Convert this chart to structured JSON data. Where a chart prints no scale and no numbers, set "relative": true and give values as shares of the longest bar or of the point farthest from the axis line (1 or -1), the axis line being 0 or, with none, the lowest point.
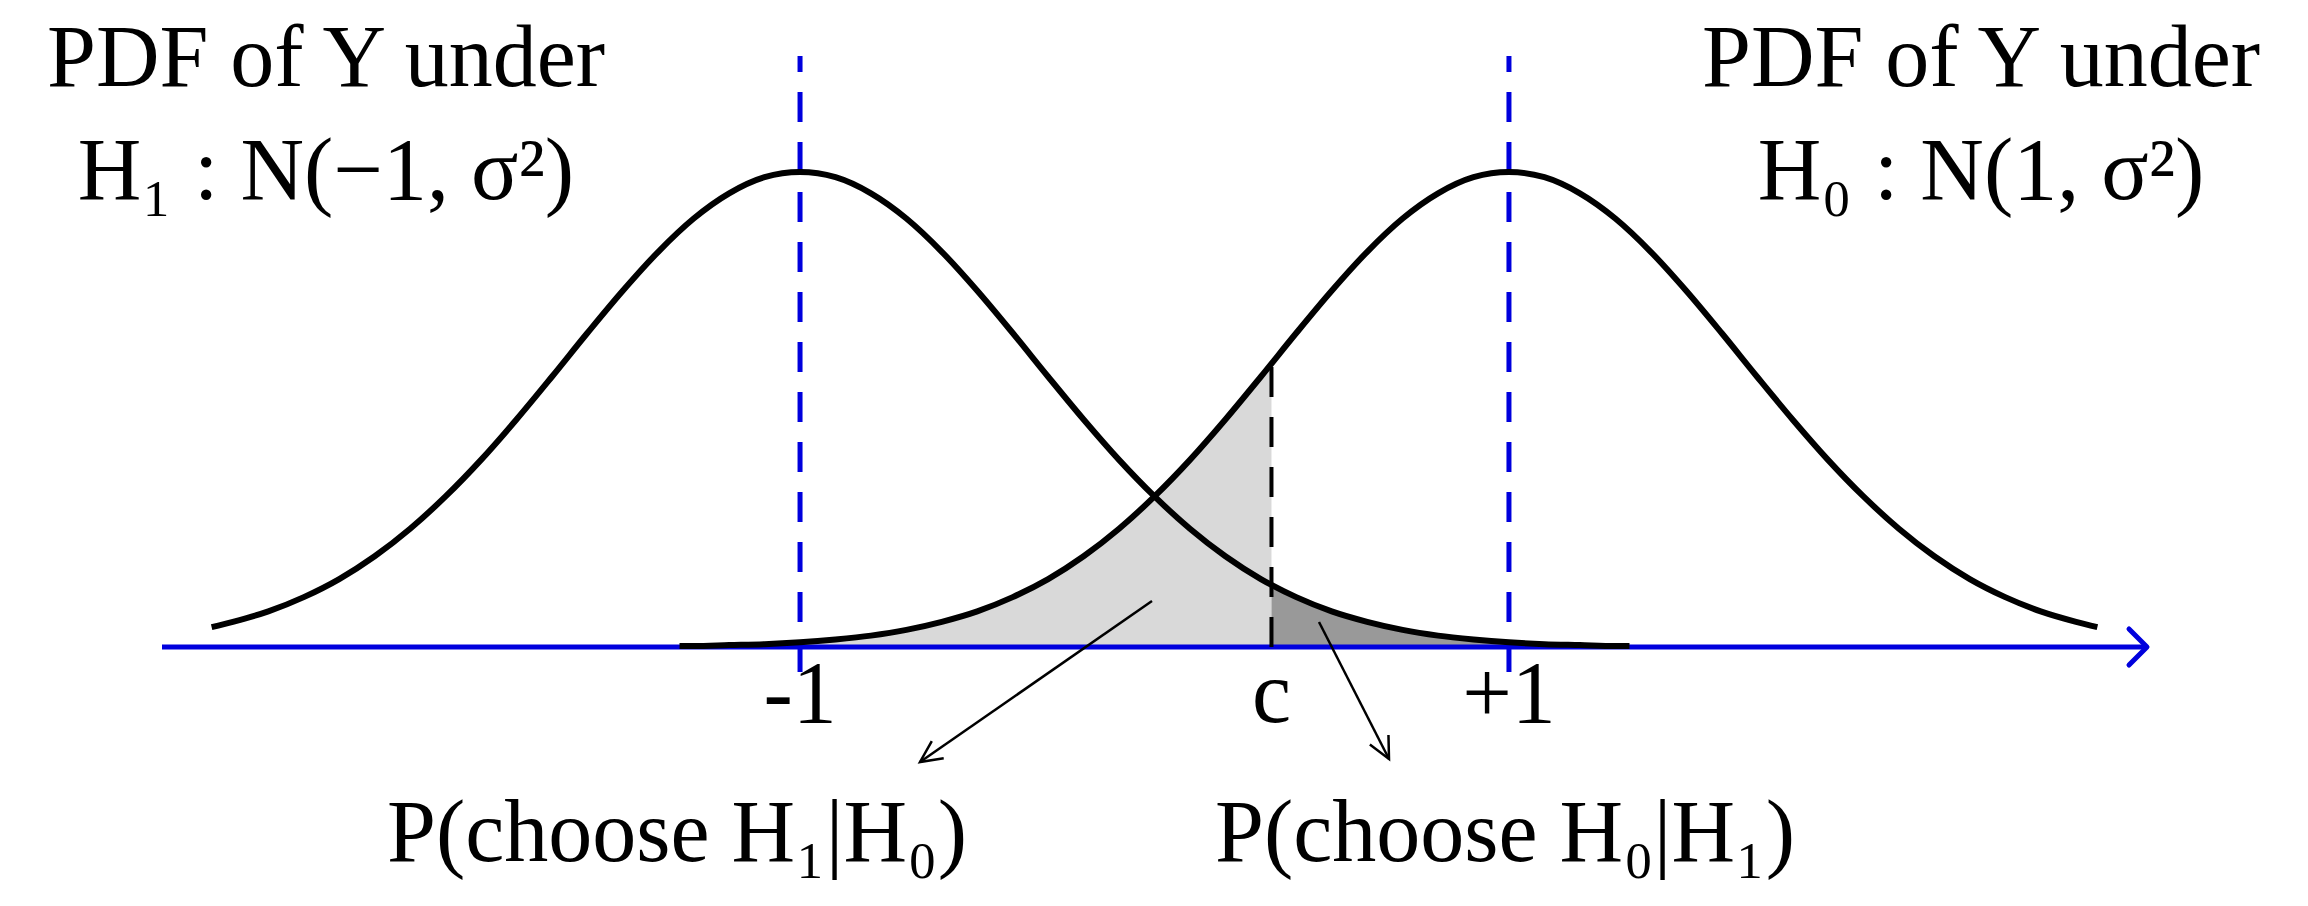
{
  "chart_data": {
    "type": "line",
    "relative": true,
    "xlim": [
      -2.8,
      2.8
    ],
    "xticks": [
      {
        "value": -1,
        "label": "-1"
      },
      {
        "value": 0.33,
        "label": "c"
      },
      {
        "value": 1,
        "label": "+1"
      }
    ],
    "series": [
      {
        "name": "PDF of Y under\nH₁ : N(−1, σ²)",
        "type": "line",
        "color": "#000000",
        "x": [
          -2.66,
          -2.6,
          -2.5,
          -2.4,
          -2.3,
          -2.2,
          -2.1,
          -2.0,
          -1.9,
          -1.8,
          -1.7,
          -1.6,
          -1.5,
          -1.4,
          -1.3,
          -1.2,
          -1.1,
          -1.0,
          -0.9,
          -0.8,
          -0.7,
          -0.6,
          -0.5,
          -0.4,
          -0.3,
          -0.2,
          -0.1,
          0,
          0.1,
          0.2,
          0.3,
          0.4,
          0.5,
          0.6,
          0.7,
          0.8,
          0.9,
          1.0,
          1.1,
          1.2,
          1.3,
          1.34
        ],
        "values": [
          0.042,
          0.053,
          0.075,
          0.105,
          0.143,
          0.191,
          0.249,
          0.317,
          0.394,
          0.479,
          0.569,
          0.661,
          0.75,
          0.832,
          0.902,
          0.955,
          0.989,
          1,
          0.989,
          0.955,
          0.902,
          0.832,
          0.75,
          0.661,
          0.569,
          0.479,
          0.394,
          0.317,
          0.249,
          0.191,
          0.143,
          0.105,
          0.075,
          0.053,
          0.036,
          0.024,
          0.016,
          0.01,
          0.006,
          0.004,
          0.002,
          0.002
        ]
      },
      {
        "name": "PDF of Y under\nH₀ : N(1, σ²)",
        "type": "line",
        "color": "#000000",
        "x": [
          -1.34,
          -1.3,
          -1.2,
          -1.1,
          -1.0,
          -0.9,
          -0.8,
          -0.7,
          -0.6,
          -0.5,
          -0.4,
          -0.3,
          -0.2,
          -0.1,
          0,
          0.1,
          0.2,
          0.3,
          0.4,
          0.5,
          0.6,
          0.7,
          0.8,
          0.9,
          1.0,
          1.1,
          1.2,
          1.3,
          1.4,
          1.5,
          1.6,
          1.7,
          1.8,
          1.9,
          2.0,
          2.1,
          2.2,
          2.3,
          2.4,
          2.5,
          2.6,
          2.66
        ],
        "values": [
          0.002,
          0.002,
          0.004,
          0.006,
          0.01,
          0.016,
          0.024,
          0.036,
          0.053,
          0.075,
          0.105,
          0.143,
          0.191,
          0.249,
          0.317,
          0.394,
          0.479,
          0.569,
          0.661,
          0.75,
          0.832,
          0.902,
          0.955,
          0.989,
          1,
          0.989,
          0.955,
          0.902,
          0.832,
          0.75,
          0.661,
          0.569,
          0.479,
          0.394,
          0.317,
          0.249,
          0.191,
          0.143,
          0.105,
          0.075,
          0.053,
          0.042
        ]
      },
      {
        "type": "area",
        "color": "#d9d9d9",
        "x": [
          -1.34,
          -1.3,
          -1.2,
          -1.1,
          -1.0,
          -0.9,
          -0.8,
          -0.7,
          -0.6,
          -0.5,
          -0.4,
          -0.3,
          -0.2,
          -0.1,
          0,
          0.1,
          0.2,
          0.3,
          0.33
        ],
        "values": [
          0.002,
          0.002,
          0.004,
          0.006,
          0.01,
          0.016,
          0.024,
          0.036,
          0.053,
          0.075,
          0.105,
          0.143,
          0.191,
          0.249,
          0.317,
          0.394,
          0.479,
          0.569,
          0.597
        ]
      },
      {
        "type": "area",
        "color": "#999999",
        "x": [
          0.33,
          0.4,
          0.5,
          0.6,
          0.7,
          0.8,
          0.9,
          1.0,
          1.1,
          1.2,
          1.3,
          1.34
        ],
        "values": [
          0.131,
          0.105,
          0.075,
          0.053,
          0.036,
          0.024,
          0.016,
          0.01,
          0.006,
          0.004,
          0.002,
          0.002
        ]
      },
      {
        "type": "line",
        "color": "#000000",
        "line_style": "dashed",
        "x": [
          0.33,
          0.33
        ],
        "values": [
          0,
          0.597
        ]
      }
    ],
    "ref_lines": [
      {
        "axis": "x",
        "value": -1,
        "color": "#0000dd",
        "line_style": "dashed"
      },
      {
        "axis": "x",
        "value": 1,
        "color": "#0000dd",
        "line_style": "dashed"
      }
    ],
    "annotations": [
      "P(choose H₁|H₀)",
      "P(choose H₀|H₁)"
    ]
  }
}
